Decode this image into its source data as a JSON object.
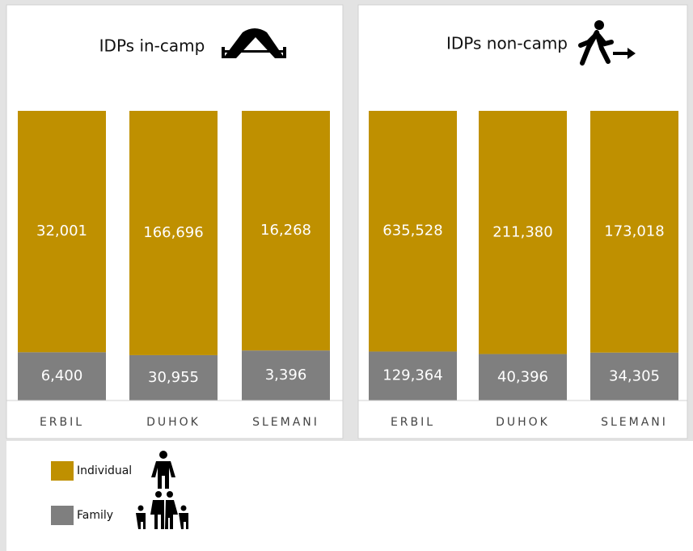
{
  "chart_data": [
    {
      "type": "bar",
      "stacking": "percent",
      "title": "IDPs in-camp",
      "categories": [
        "ERBIL",
        "DUHOK",
        "SLEMANI"
      ],
      "series": [
        {
          "name": "Individual",
          "color": "#bf9000",
          "values": [
            32001,
            166696,
            16268
          ],
          "value_labels": [
            "32,001",
            "166,696",
            "16,268"
          ]
        },
        {
          "name": "Family",
          "color": "#7f7f7f",
          "values": [
            6400,
            30955,
            3396
          ],
          "value_labels": [
            "6,400",
            "30,955",
            "3,396"
          ]
        }
      ]
    },
    {
      "type": "bar",
      "stacking": "percent",
      "title": "IDPs non-camp",
      "categories": [
        "ERBIL",
        "DUHOK",
        "SLEMANI"
      ],
      "series": [
        {
          "name": "Individual",
          "color": "#bf9000",
          "values": [
            635528,
            211380,
            173018
          ],
          "value_labels": [
            "635,528",
            "211,380",
            "173,018"
          ]
        },
        {
          "name": "Family",
          "color": "#7f7f7f",
          "values": [
            129364,
            40396,
            34305
          ],
          "value_labels": [
            "129,364",
            "40,396",
            "34,305"
          ]
        }
      ]
    }
  ]
}
